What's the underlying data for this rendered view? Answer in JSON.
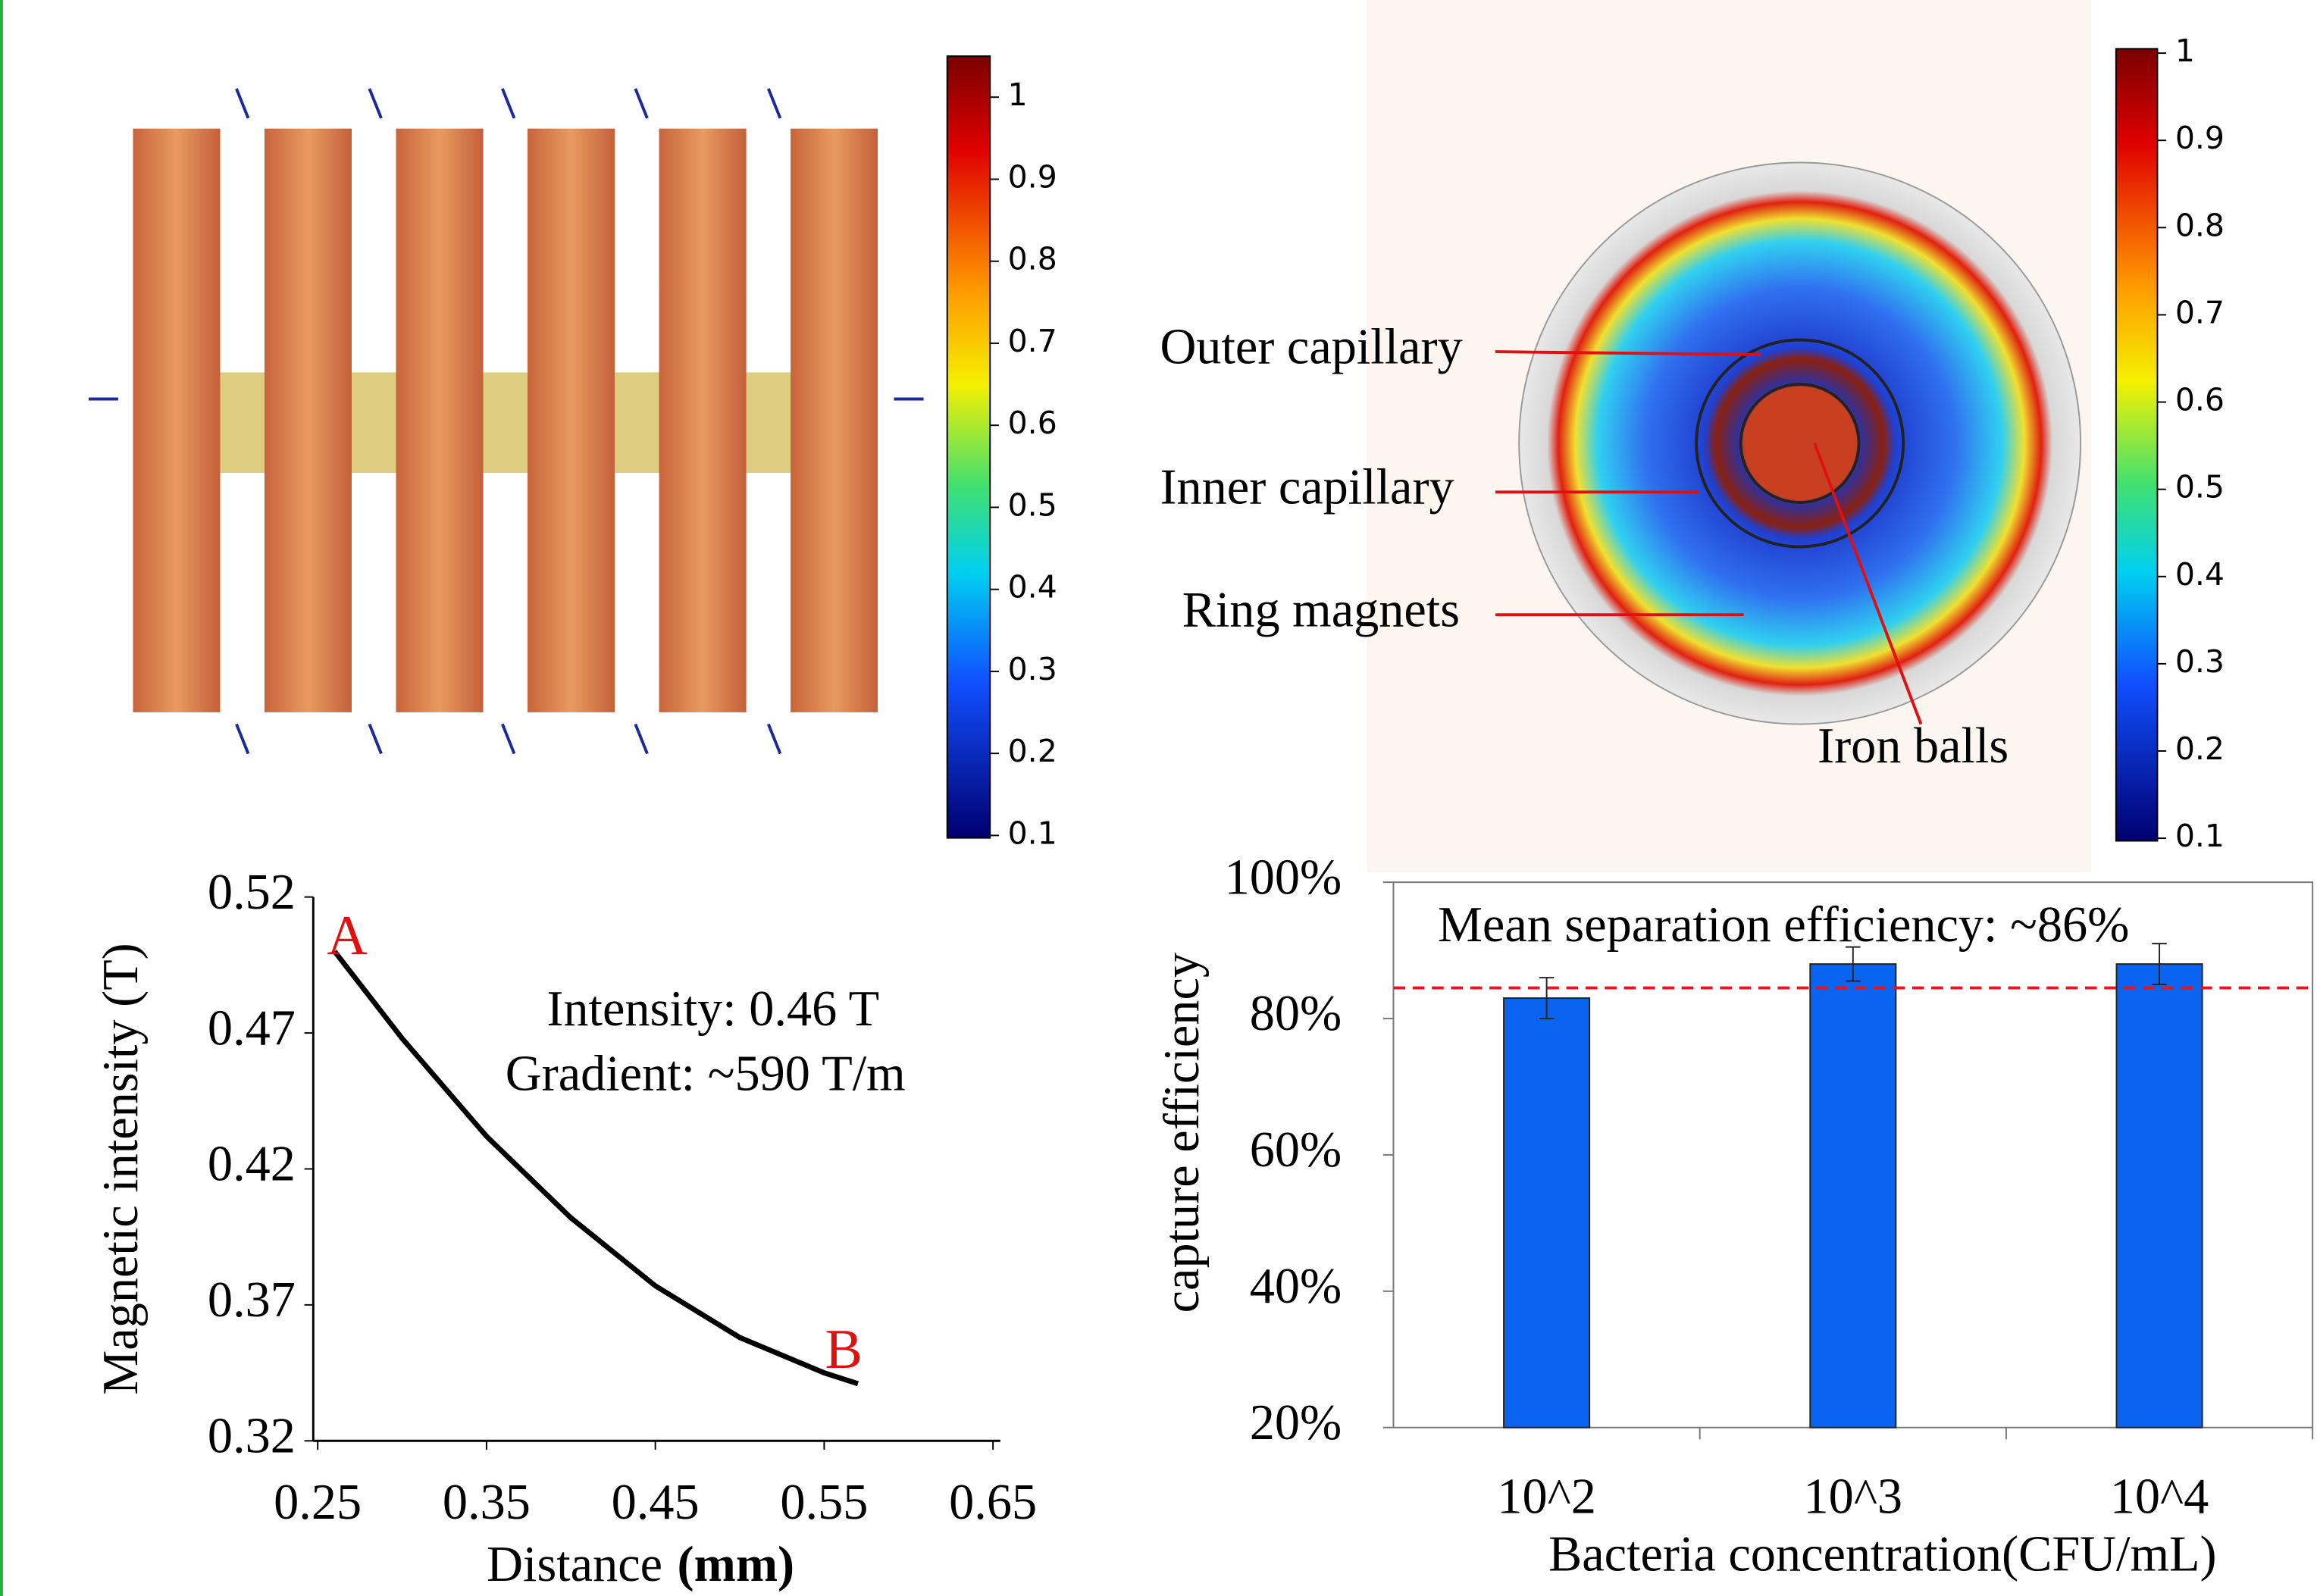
{
  "simulation_labels": [
    "Outer capillary",
    "Inner capillary",
    "Ring magnets",
    "Iron balls"
  ],
  "chart_data": [
    {
      "type": "colorbar",
      "ylim": [
        0.097,
        1.05
      ],
      "yticks": [
        0.1,
        0.2,
        0.3,
        0.4,
        0.5,
        0.6,
        0.7,
        0.8,
        0.9,
        1
      ]
    },
    {
      "type": "colorbar",
      "ylim": [
        0.097,
        1.005
      ],
      "yticks": [
        0.1,
        0.2,
        0.3,
        0.4,
        0.5,
        0.6,
        0.7,
        0.8,
        0.9,
        1
      ]
    },
    {
      "type": "line",
      "xlabel": "Distance",
      "xlabel_unit": "(mm)",
      "ylabel": "Magnetic intensity (T)",
      "x": [
        0.26,
        0.3,
        0.35,
        0.4,
        0.45,
        0.5,
        0.55,
        0.57
      ],
      "values": [
        0.5,
        0.468,
        0.432,
        0.402,
        0.377,
        0.358,
        0.345,
        0.341
      ],
      "color": "#000000",
      "xlim": [
        0.25,
        0.65
      ],
      "xticks": [
        0.25,
        0.35,
        0.45,
        0.55,
        0.65
      ],
      "ylim": [
        0.32,
        0.52
      ],
      "yticks": [
        0.32,
        0.37,
        0.42,
        0.47,
        0.52
      ],
      "annotations": [
        "A",
        "B",
        "Intensity: 0.46 T",
        "Gradient: ~590 T/m"
      ]
    },
    {
      "type": "bar",
      "xlabel": "Bacteria concentration(CFU/mL)",
      "ylabel": "capture efficiency",
      "categories": [
        "10^2",
        "10^3",
        "10^4"
      ],
      "values": [
        83,
        88,
        88
      ],
      "errors": [
        3,
        2.5,
        3
      ],
      "color": "#0a64f0",
      "ref_line": 84.5,
      "ref_color": "#e8141e",
      "annotation": "Mean separation efficiency: ~86%",
      "ylim": [
        20,
        100
      ],
      "yticks": [
        {
          "value": 20,
          "label": "20%"
        },
        {
          "value": 40,
          "label": "40%"
        },
        {
          "value": 60,
          "label": "60%"
        },
        {
          "value": 80,
          "label": "80%"
        },
        {
          "value": 100,
          "label": "100%"
        }
      ]
    }
  ]
}
